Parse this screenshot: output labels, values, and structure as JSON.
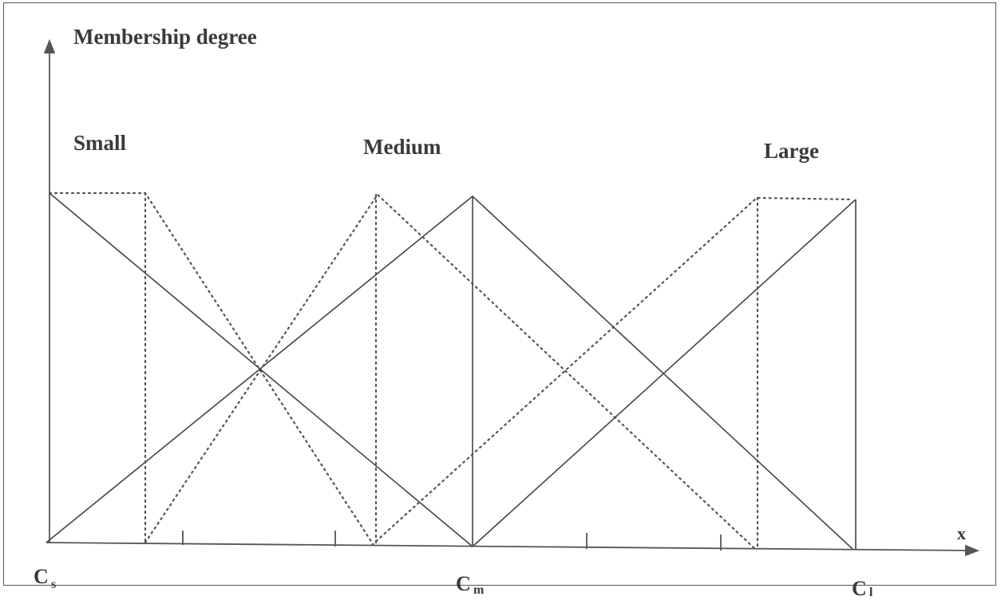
{
  "y_axis_label": "Membership degree",
  "x_axis_label": "x",
  "set_labels": {
    "small": "Small",
    "medium": "Medium",
    "large": "Large"
  },
  "points": {
    "cs": {
      "main": "C",
      "sub": "s"
    },
    "cm": {
      "main": "C",
      "sub": "m"
    },
    "cl": {
      "main": "C",
      "sub": "l"
    }
  }
}
